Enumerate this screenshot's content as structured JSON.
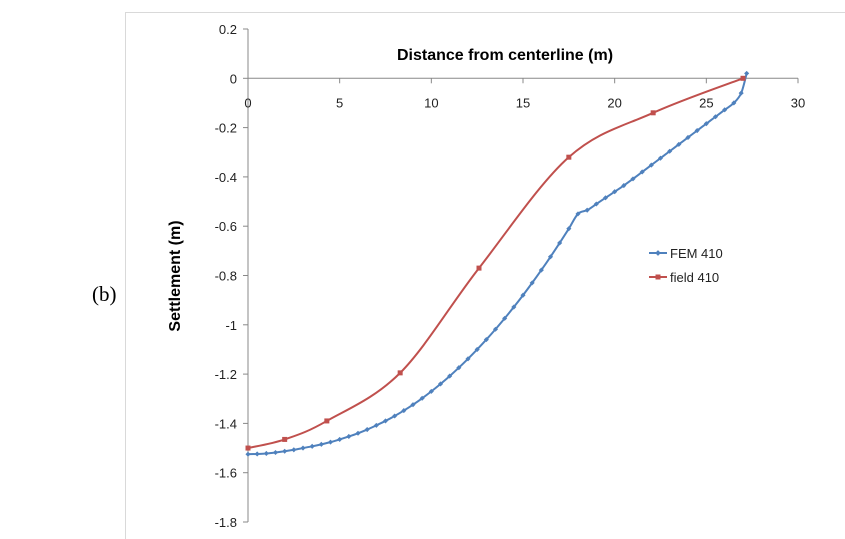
{
  "figure_label": "(b)",
  "chart_data": {
    "type": "line",
    "title": "",
    "xlabel": "Distance from centerline (m)",
    "ylabel": "Settlement (m)",
    "xlim": [
      0,
      30
    ],
    "ylim": [
      -1.8,
      0.2
    ],
    "x_ticks": [
      "0",
      "5",
      "10",
      "15",
      "20",
      "25",
      "30"
    ],
    "y_ticks": [
      "0.2",
      "0",
      "-0.2",
      "-0.4",
      "-0.6",
      "-0.8",
      "-1",
      "-1.2",
      "-1.4",
      "-1.6",
      "-1.8"
    ],
    "x_axis_position": "top (at y = 0)",
    "grid": false,
    "legend_position": "right",
    "series": [
      {
        "name": "FEM 410",
        "color": "#4F81BD",
        "marker": "diamond",
        "x": [
          0,
          0.5,
          1,
          1.5,
          2,
          2.5,
          3,
          3.5,
          4,
          4.5,
          5,
          5.5,
          6,
          6.5,
          7,
          7.5,
          8,
          8.5,
          9,
          9.5,
          10,
          10.5,
          11,
          11.5,
          12,
          12.5,
          13,
          13.5,
          14,
          14.5,
          15,
          15.5,
          16,
          16.5,
          17,
          17.5,
          18,
          18.5,
          19,
          19.5,
          20,
          20.5,
          21,
          21.5,
          22,
          22.5,
          23,
          23.5,
          24,
          24.5,
          25,
          25.5,
          26,
          26.5,
          26.9,
          27.2
        ],
        "values": [
          -1.525,
          -1.524,
          -1.522,
          -1.518,
          -1.513,
          -1.507,
          -1.5,
          -1.493,
          -1.485,
          -1.476,
          -1.465,
          -1.453,
          -1.44,
          -1.425,
          -1.408,
          -1.39,
          -1.37,
          -1.348,
          -1.324,
          -1.298,
          -1.27,
          -1.24,
          -1.208,
          -1.174,
          -1.138,
          -1.1,
          -1.06,
          -1.018,
          -0.974,
          -0.928,
          -0.88,
          -0.83,
          -0.778,
          -0.724,
          -0.668,
          -0.61,
          -0.55,
          -0.535,
          -0.51,
          -0.485,
          -0.46,
          -0.435,
          -0.408,
          -0.38,
          -0.352,
          -0.324,
          -0.296,
          -0.268,
          -0.24,
          -0.212,
          -0.184,
          -0.156,
          -0.128,
          -0.1,
          -0.06,
          0.02
        ]
      },
      {
        "name": "field 410",
        "color": "#C0504D",
        "marker": "square",
        "x": [
          0,
          2,
          4.3,
          8.3,
          12.6,
          17.5,
          22.1,
          27
        ],
        "values": [
          -1.5,
          -1.465,
          -1.39,
          -1.195,
          -0.77,
          -0.32,
          -0.14,
          0
        ]
      }
    ]
  }
}
